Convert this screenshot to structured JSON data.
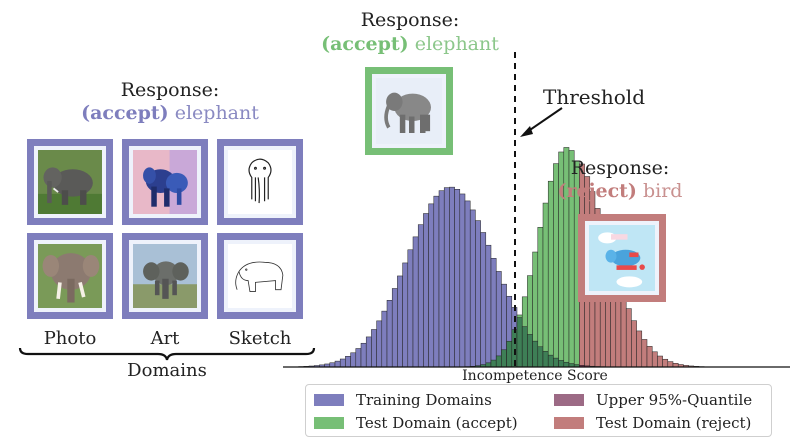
{
  "responses": {
    "left": {
      "title": "Response:",
      "keyword": "(accept)",
      "label": "elephant"
    },
    "top": {
      "title": "Response:",
      "keyword": "(accept)",
      "label": "elephant"
    },
    "right": {
      "title": "Response:",
      "keyword": "(reject)",
      "label": "bird"
    }
  },
  "domains": {
    "labels": [
      "Photo",
      "Art",
      "Sketch"
    ],
    "group_label": "Domains"
  },
  "threshold_label": "Threshold",
  "xlabel": "Incompetence Score",
  "legend": {
    "items": [
      {
        "label": "Training Domains",
        "color": "#7e7ebd"
      },
      {
        "label": "Upper 95%-Quantile",
        "color": "#9c6a85"
      },
      {
        "label": "Test Domain (accept)",
        "color": "#77bf76"
      },
      {
        "label": "Test Domain (reject)",
        "color": "#c27d7c"
      }
    ]
  },
  "colors": {
    "training": "#7e7ebd",
    "accept": "#77bf76",
    "reject": "#c27d7c",
    "overlap_train_accept": "#3e7f56",
    "overlap_train_reject": "#7a2d4e"
  },
  "chart_data": {
    "type": "bar",
    "xlabel": "Incompetence Score",
    "threshold": 0.58,
    "xlim": [
      0,
      1
    ],
    "series": [
      {
        "name": "Training Domains",
        "mean": 0.33,
        "sd": 0.085,
        "peak": 1.0
      },
      {
        "name": "Test Domain (accept)",
        "mean": 0.56,
        "sd": 0.055,
        "peak": 1.22,
        "upper": 0.58
      },
      {
        "name": "Test Domain (reject)",
        "mean": 0.56,
        "sd": 0.075,
        "peak": 1.22,
        "lower": 0.58
      }
    ]
  }
}
